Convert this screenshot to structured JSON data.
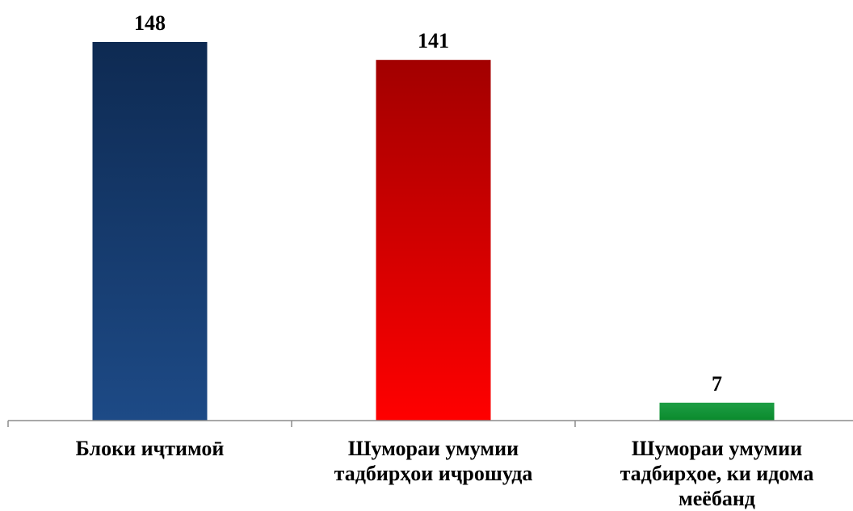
{
  "chart_data": {
    "type": "bar",
    "title": "",
    "xlabel": "",
    "ylabel": "",
    "categories": [
      "Блоки иҷтимоӣ",
      "Шумораи умумии тадбирҳои иҷрошуда",
      "Шумораи умумии тадбирҳое, ки идома меёбанд"
    ],
    "values": [
      148,
      141,
      7
    ],
    "ylim": [
      0,
      148
    ],
    "grid": false,
    "legend": "none",
    "colors": [
      {
        "top": "#0e2a52",
        "bottom": "#1d4a86"
      },
      {
        "top": "#a20000",
        "bottom": "#ff0000"
      },
      {
        "top": "#1e9e45",
        "bottom": "#0a8a2c"
      }
    ]
  }
}
